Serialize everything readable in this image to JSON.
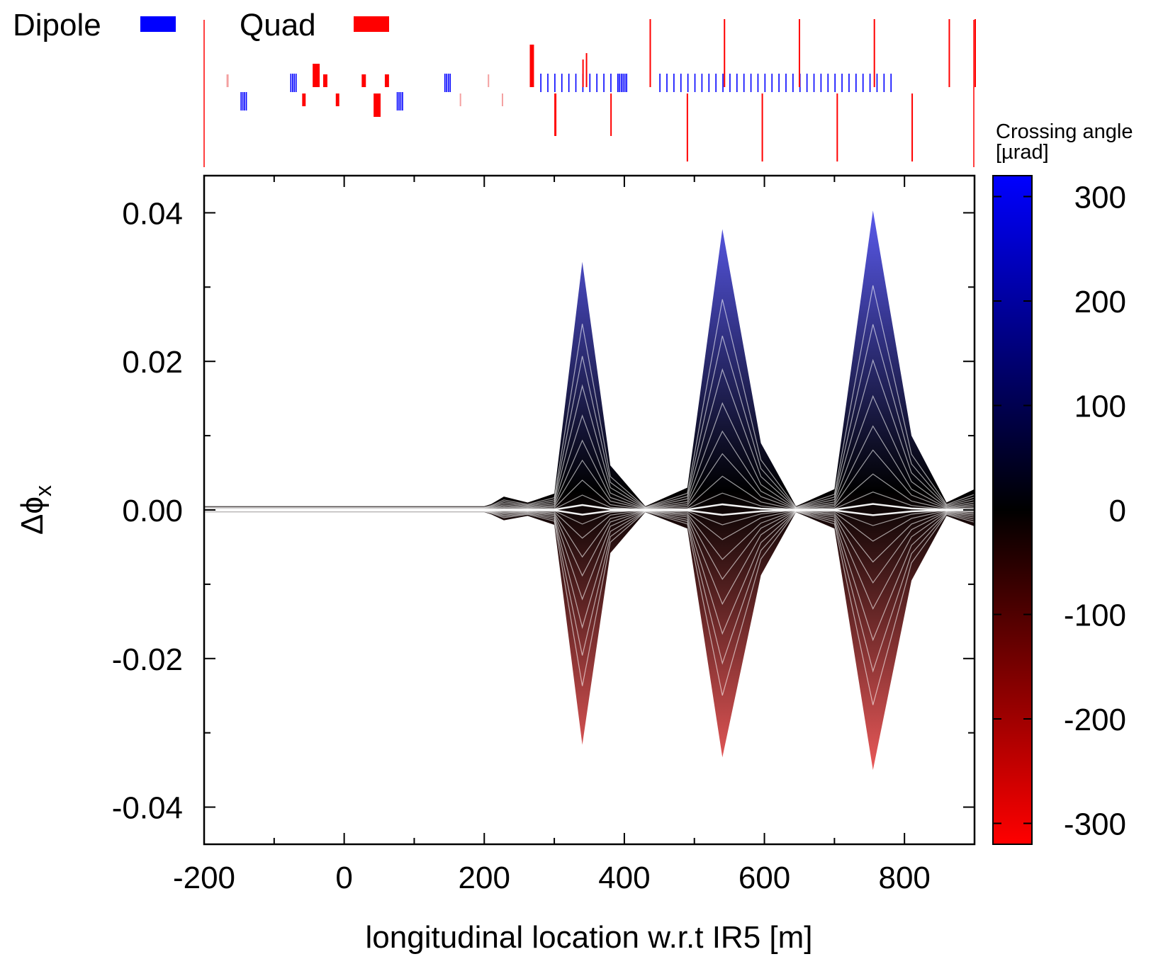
{
  "chart_data": {
    "type": "area",
    "xlabel": "longitudinal location w.r.t IR5  [m]",
    "ylabel": "Δϕ",
    "ylabel_sub": "x",
    "xlim": [
      -200,
      900
    ],
    "ylim": [
      -0.045,
      0.045
    ],
    "x_ticks": [
      -200,
      0,
      200,
      400,
      600,
      800
    ],
    "x_tick_labels": [
      "-200",
      "0",
      "200",
      "400",
      "600",
      "800"
    ],
    "y_ticks": [
      -0.04,
      -0.02,
      0.0,
      0.02,
      0.04
    ],
    "y_tick_labels": [
      "-0.04",
      "-0.02",
      "0.00",
      "0.02",
      "0.04"
    ],
    "envelope": {
      "x": [
        -200,
        0,
        100,
        200,
        210,
        228,
        262,
        300,
        340,
        380,
        430,
        490,
        540,
        595,
        645,
        700,
        755,
        810,
        860,
        900
      ],
      "upper": [
        0.0005,
        0.0005,
        0.0005,
        0.0005,
        0.0008,
        0.0018,
        0.001,
        0.0022,
        0.0334,
        0.006,
        0.0005,
        0.003,
        0.0378,
        0.009,
        0.0005,
        0.0028,
        0.0403,
        0.01,
        0.001,
        0.0028
      ],
      "lower": [
        -0.0003,
        -0.0003,
        -0.0003,
        -0.0003,
        -0.0006,
        -0.0014,
        -0.0008,
        -0.002,
        -0.0316,
        -0.0058,
        -0.0003,
        -0.0025,
        -0.0333,
        -0.0088,
        -0.0003,
        -0.0025,
        -0.035,
        -0.0095,
        -0.0008,
        -0.0022
      ]
    },
    "colorbar": {
      "title": "Crossing angle",
      "title_units": "[µrad]",
      "range": [
        -320,
        320
      ],
      "ticks": [
        300,
        200,
        100,
        0,
        -100,
        -200,
        -300
      ],
      "tick_labels": [
        "300",
        "200",
        "100",
        "0",
        "-100",
        "-200",
        "-300"
      ],
      "colors": {
        "max": "#0000ff",
        "mid": "#000000",
        "min": "#ff0000"
      }
    },
    "legend": [
      {
        "name": "Dipole",
        "color": "#0000ff"
      },
      {
        "name": "Quad",
        "color": "#ff0000"
      }
    ],
    "lattice": {
      "dipoles": [
        {
          "s": -148,
          "level": "low",
          "count": 4
        },
        {
          "s": -77,
          "level": "high",
          "count": 4
        },
        {
          "s": 75,
          "level": "low",
          "count": 4
        },
        {
          "s": 143,
          "level": "high",
          "count": 4
        },
        {
          "s": 280,
          "level": "high",
          "count": 12
        },
        {
          "s": 390,
          "level": "high",
          "count": 6
        },
        {
          "s": 450,
          "level": "high",
          "count": 34
        }
      ],
      "quads": [
        {
          "s": -168,
          "len": 3,
          "strength": 0.3,
          "faint": true
        },
        {
          "s": -60,
          "len": 5,
          "strength": -0.3,
          "faint": false
        },
        {
          "s": -45,
          "len": 10,
          "strength": 0.55,
          "faint": false
        },
        {
          "s": -30,
          "len": 6,
          "strength": 0.3,
          "faint": false
        },
        {
          "s": -12,
          "len": 5,
          "strength": -0.3,
          "faint": false
        },
        {
          "s": 25,
          "len": 6,
          "strength": 0.3,
          "faint": false
        },
        {
          "s": 42,
          "len": 10,
          "strength": -0.55,
          "faint": false
        },
        {
          "s": 58,
          "len": 6,
          "strength": 0.3,
          "faint": false
        },
        {
          "s": 165,
          "len": 2,
          "strength": -0.3,
          "faint": true
        },
        {
          "s": 205,
          "len": 2,
          "strength": 0.3,
          "faint": true
        },
        {
          "s": 225,
          "len": 2,
          "strength": -0.3,
          "faint": true
        },
        {
          "s": 265,
          "len": 6,
          "strength": 1.0,
          "faint": false
        },
        {
          "s": 300,
          "len": 3,
          "strength": -1.0,
          "faint": false
        },
        {
          "s": 340,
          "len": 2,
          "strength": 0.65,
          "faint": false
        },
        {
          "s": 345,
          "len": 2,
          "strength": 0.8,
          "faint": false
        },
        {
          "s": 380,
          "len": 2,
          "strength": -1.0,
          "faint": false
        },
        {
          "s": 436,
          "len": 1,
          "strength": 1.6,
          "faint": false
        },
        {
          "s": 489,
          "len": 1,
          "strength": -1.6,
          "faint": false
        },
        {
          "s": 542,
          "len": 1,
          "strength": 1.6,
          "faint": false
        },
        {
          "s": 596,
          "len": 1,
          "strength": -1.6,
          "faint": false
        },
        {
          "s": 649,
          "len": 1,
          "strength": 1.6,
          "faint": false
        },
        {
          "s": 703,
          "len": 1,
          "strength": -1.6,
          "faint": false
        },
        {
          "s": 756,
          "len": 1,
          "strength": 1.6,
          "faint": false
        },
        {
          "s": 810,
          "len": 1,
          "strength": -1.6,
          "faint": false
        },
        {
          "s": 863,
          "len": 1,
          "strength": 1.6,
          "faint": false
        },
        {
          "s": 900,
          "len": 1,
          "strength": 1.6,
          "faint": false
        }
      ]
    }
  }
}
